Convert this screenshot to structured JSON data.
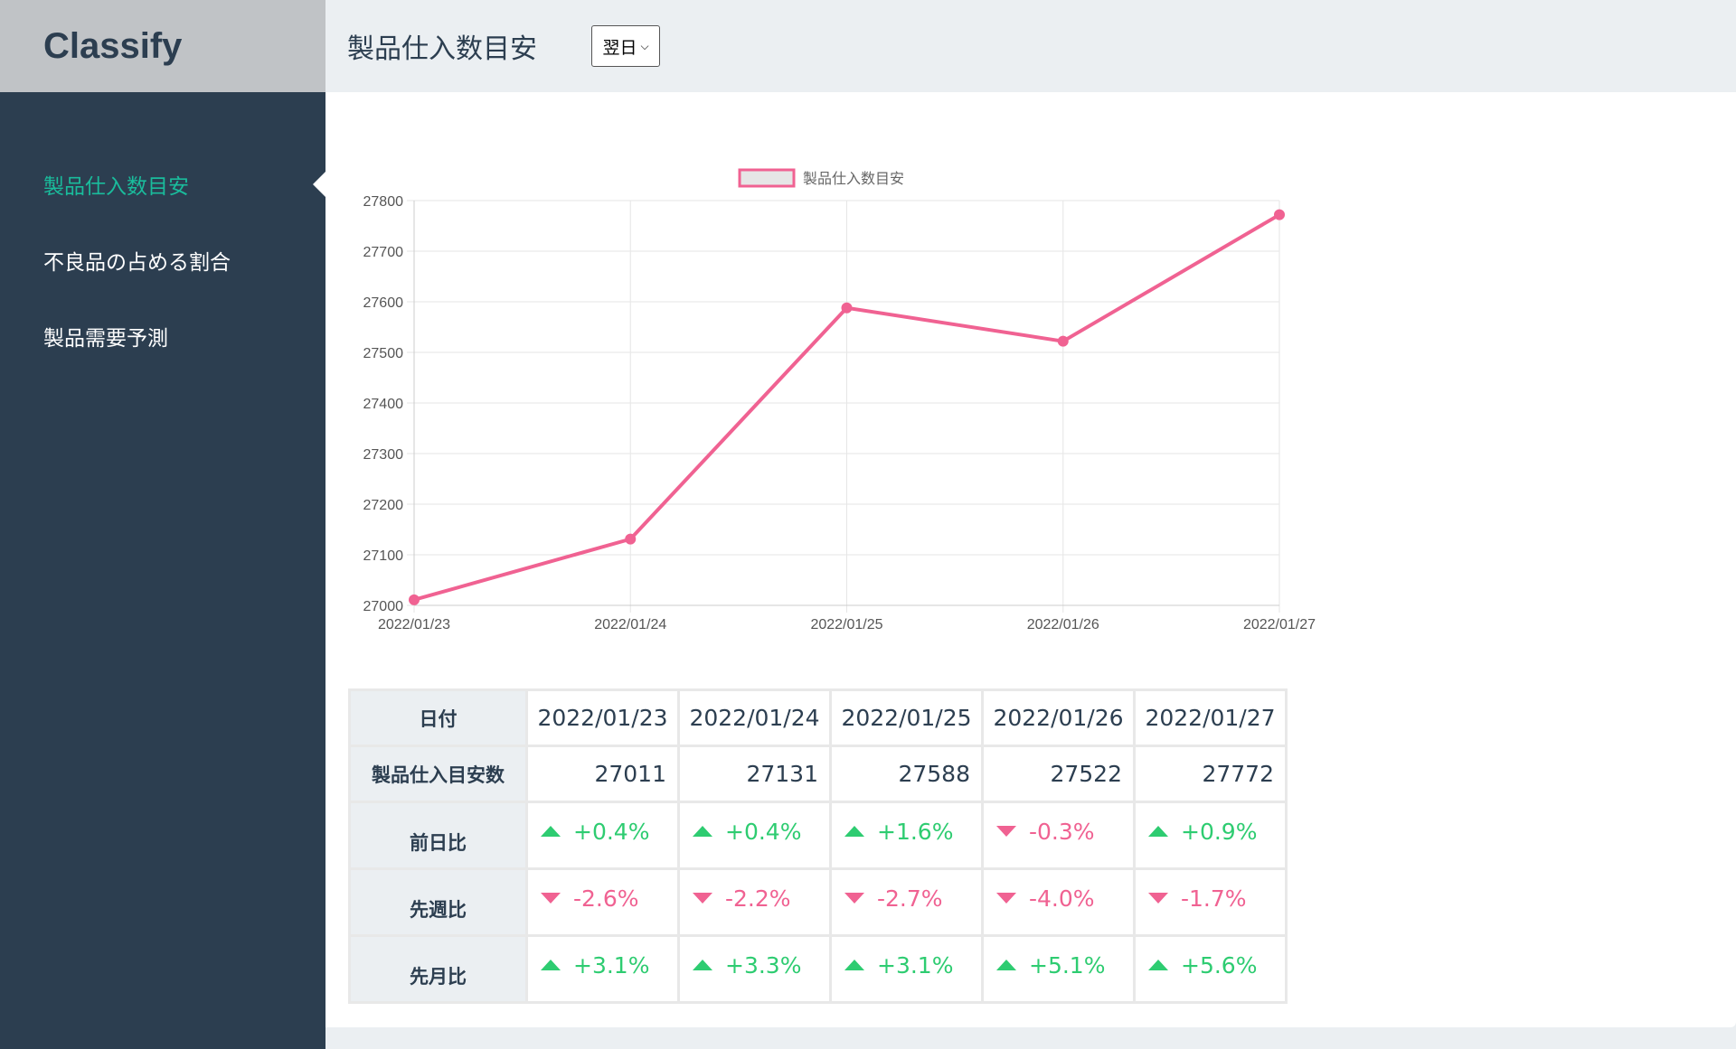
{
  "app": {
    "brand": "Classify"
  },
  "sidebar": {
    "items": [
      {
        "label": "製品仕入数目安",
        "active": true
      },
      {
        "label": "不良品の占める割合",
        "active": false
      },
      {
        "label": "製品需要予測",
        "active": false
      }
    ]
  },
  "header": {
    "title": "製品仕入数目安",
    "period_select": {
      "value": "翌日"
    }
  },
  "chart_data": {
    "type": "line",
    "legend_position": "top",
    "grid": true,
    "x": [
      "2022/01/23",
      "2022/01/24",
      "2022/01/25",
      "2022/01/26",
      "2022/01/27"
    ],
    "series": [
      {
        "name": "製品仕入数目安",
        "values": [
          27011,
          27131,
          27588,
          27522,
          27772
        ],
        "color": "#f06292"
      }
    ],
    "ylim": [
      27000,
      27800
    ],
    "yticks": [
      27000,
      27100,
      27200,
      27300,
      27400,
      27500,
      27600,
      27700,
      27800
    ]
  },
  "table": {
    "headers": {
      "date": "日付",
      "qty": "製品仕入目安数",
      "dod": "前日比",
      "wow": "先週比",
      "mom": "先月比"
    },
    "dates": [
      "2022/01/23",
      "2022/01/24",
      "2022/01/25",
      "2022/01/26",
      "2022/01/27"
    ],
    "quantities": [
      "27011",
      "27131",
      "27588",
      "27522",
      "27772"
    ],
    "dod": [
      {
        "text": "+0.4%",
        "dir": "up"
      },
      {
        "text": "+0.4%",
        "dir": "up"
      },
      {
        "text": "+1.6%",
        "dir": "up"
      },
      {
        "text": "-0.3%",
        "dir": "down"
      },
      {
        "text": "+0.9%",
        "dir": "up"
      }
    ],
    "wow": [
      {
        "text": "-2.6%",
        "dir": "down"
      },
      {
        "text": "-2.2%",
        "dir": "down"
      },
      {
        "text": "-2.7%",
        "dir": "down"
      },
      {
        "text": "-4.0%",
        "dir": "down"
      },
      {
        "text": "-1.7%",
        "dir": "down"
      }
    ],
    "mom": [
      {
        "text": "+3.1%",
        "dir": "up"
      },
      {
        "text": "+3.3%",
        "dir": "up"
      },
      {
        "text": "+3.1%",
        "dir": "up"
      },
      {
        "text": "+5.1%",
        "dir": "up"
      },
      {
        "text": "+5.6%",
        "dir": "up"
      }
    ]
  }
}
